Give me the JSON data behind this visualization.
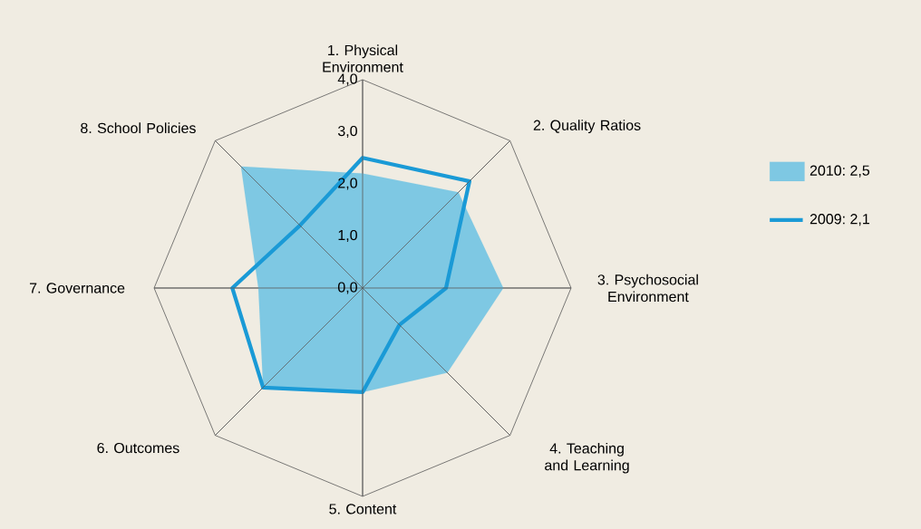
{
  "chart_data": {
    "type": "radar",
    "categories": [
      "1. Physical Environment",
      "2. Quality Ratios",
      "3. Psychosocial Environment",
      "4. Teaching and Learning",
      "5. Content",
      "6. Outcomes",
      "7. Governance",
      "8. School Policies"
    ],
    "series": [
      {
        "name": "2010: 2,5",
        "type": "area",
        "color": "#7ec8e3",
        "values": [
          2.2,
          2.6,
          2.7,
          2.3,
          2.0,
          2.7,
          2.0,
          3.3
        ]
      },
      {
        "name": "2009: 2,1",
        "color": "#1a9ad6",
        "values": [
          2.5,
          2.9,
          1.6,
          1.0,
          2.0,
          2.7,
          2.5,
          1.7
        ]
      }
    ],
    "ylim": [
      0,
      4
    ],
    "yticks": [
      {
        "value": 0,
        "label": "0,0"
      },
      {
        "value": 1,
        "label": "1,0"
      },
      {
        "value": 2,
        "label": "2,0"
      },
      {
        "value": 3,
        "label": "3,0"
      },
      {
        "value": 4,
        "label": "4,0"
      }
    ],
    "grid": true,
    "legend": "right"
  }
}
